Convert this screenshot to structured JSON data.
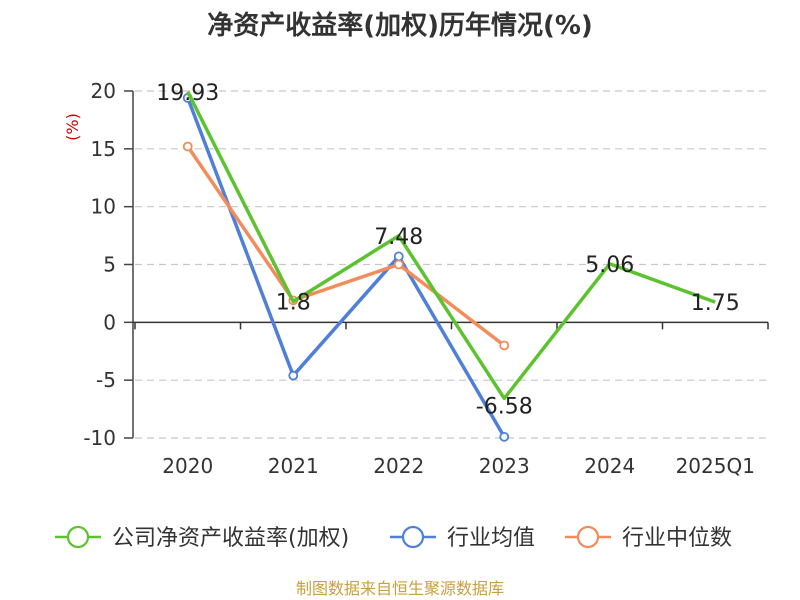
{
  "chart_data": {
    "type": "line",
    "title": "净资产收益率(加权)历年情况(%)",
    "ylabel": "(%)",
    "categories": [
      "2020",
      "2021",
      "2022",
      "2023",
      "2024",
      "2025Q1"
    ],
    "ylim": [
      -10,
      20
    ],
    "yticks": [
      "20",
      "15",
      "10",
      "5",
      "0",
      "-5",
      "-10"
    ],
    "grid": true,
    "legend_position": "bottom",
    "series": [
      {
        "name": "公司净资产收益率(加权)",
        "color": "#5cc22f",
        "values": [
          19.93,
          1.8,
          7.48,
          -6.58,
          5.06,
          1.75
        ],
        "labels": [
          "19.93",
          "1.8",
          "7.48",
          "-6.58",
          "5.06",
          "1.75"
        ]
      },
      {
        "name": "行业均值",
        "color": "#4f7fd9",
        "values": [
          19.4,
          -4.6,
          5.7,
          -9.9,
          null,
          null
        ]
      },
      {
        "name": "行业中位数",
        "color": "#f28c5a",
        "values": [
          15.2,
          1.9,
          5.0,
          -2.0,
          null,
          null
        ]
      }
    ]
  },
  "source": "制图数据来自恒生聚源数据库"
}
